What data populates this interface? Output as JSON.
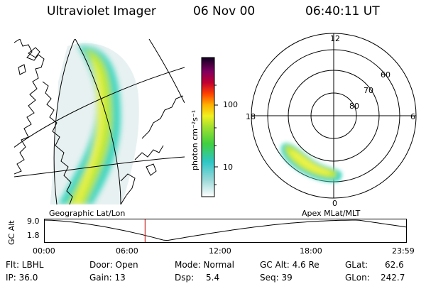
{
  "header": {
    "title": "Ultraviolet Imager",
    "date": "06 Nov 00",
    "time": "06:40:11 UT"
  },
  "map_labels": {
    "geographic": "Geographic Lat/Lon",
    "apex": "Apex MLat/MLT"
  },
  "colorbar": {
    "label": "photon cm⁻²s⁻¹",
    "ticks": [
      "100",
      "10"
    ]
  },
  "polar": {
    "mlt_labels": [
      "12",
      "18",
      "6",
      "0"
    ],
    "lat_labels": [
      "60",
      "70",
      "80"
    ]
  },
  "altitude_plot": {
    "ylabel": "GC Alt",
    "yticks": [
      "9.0",
      "1.8"
    ],
    "xticks": [
      "00:00",
      "06:00",
      "12:00",
      "18:00",
      "23:59"
    ],
    "current_time_fraction": 0.278
  },
  "status": {
    "filter": "Flt: LBHL",
    "ip": "IP: 36.0",
    "door": "Door: Open",
    "gain": "Gain: 13",
    "mode": "Mode: Normal",
    "dsp_label": "Dsp:",
    "dsp_value": "5.4",
    "gc_alt": "GC Alt: 4.6 Re",
    "seq": "Seq: 39",
    "glat_label": "GLat:",
    "glat_value": "62.6",
    "glon_label": "GLon:",
    "glon_value": "242.7"
  },
  "colors": {
    "trace": "#000000",
    "time_marker": "#c00000"
  }
}
